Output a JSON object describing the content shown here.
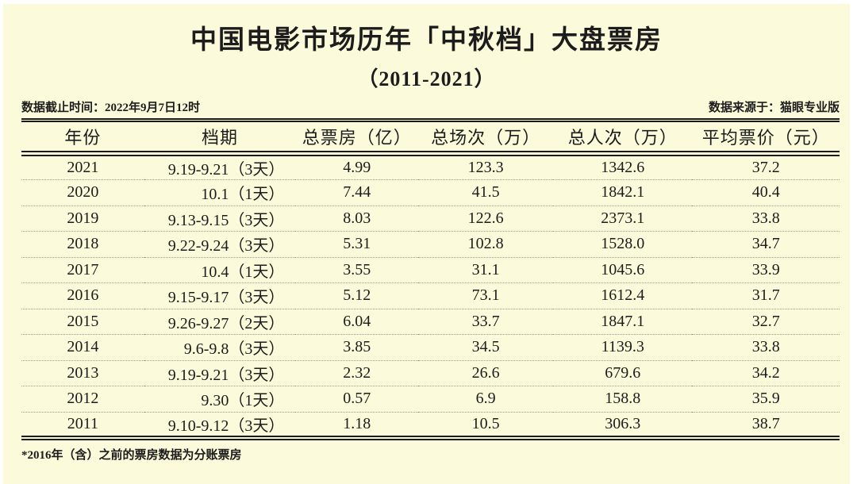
{
  "header": {
    "title": "中国电影市场历年「中秋档」大盘票房",
    "subtitle": "（2011-2021）",
    "meta_cutoff": "数据截止时间：2022年9月7日12时",
    "meta_source": "数据来源于：猫眼专业版"
  },
  "chart_data": {
    "type": "table",
    "title": "中国电影市场历年「中秋档」大盘票房（2011-2021）",
    "columns": [
      "年份",
      "档期",
      "总票房（亿）",
      "总场次（万）",
      "总人次（万）",
      "平均票价（元）"
    ],
    "column_keys": [
      "year",
      "date-range",
      "total-box-office",
      "total-screenings",
      "total-admissions",
      "avg-ticket-price"
    ],
    "rows": [
      [
        "2021",
        "9.19-9.21（3天）",
        "4.99",
        "123.3",
        "1342.6",
        "37.2"
      ],
      [
        "2020",
        "10.1（1天）",
        "7.44",
        "41.5",
        "1842.1",
        "40.4"
      ],
      [
        "2019",
        "9.13-9.15（3天）",
        "8.03",
        "122.6",
        "2373.1",
        "33.8"
      ],
      [
        "2018",
        "9.22-9.24（3天）",
        "5.31",
        "102.8",
        "1528.0",
        "34.7"
      ],
      [
        "2017",
        "10.4（1天）",
        "3.55",
        "31.1",
        "1045.6",
        "33.9"
      ],
      [
        "2016",
        "9.15-9.17（3天）",
        "5.12",
        "73.1",
        "1612.4",
        "31.7"
      ],
      [
        "2015",
        "9.26-9.27（2天）",
        "6.04",
        "33.7",
        "1847.1",
        "32.7"
      ],
      [
        "2014",
        "9.6-9.8（3天）",
        "3.85",
        "34.5",
        "1139.3",
        "33.8"
      ],
      [
        "2013",
        "9.19-9.21（3天）",
        "2.32",
        "26.6",
        "679.6",
        "34.2"
      ],
      [
        "2012",
        "9.30（1天）",
        "0.57",
        "6.9",
        "158.8",
        "35.9"
      ],
      [
        "2011",
        "9.10-9.12（3天）",
        "1.18",
        "10.5",
        "306.3",
        "38.7"
      ]
    ]
  },
  "footnote": "*2016年（含）之前的票房数据为分账票房",
  "colors": {
    "background": "#FBFADA",
    "page_margin": "#FFFFFF",
    "text": "#1C1C1C",
    "rule": "#1A1A1A",
    "dotted_divider": "#9A9A88"
  }
}
